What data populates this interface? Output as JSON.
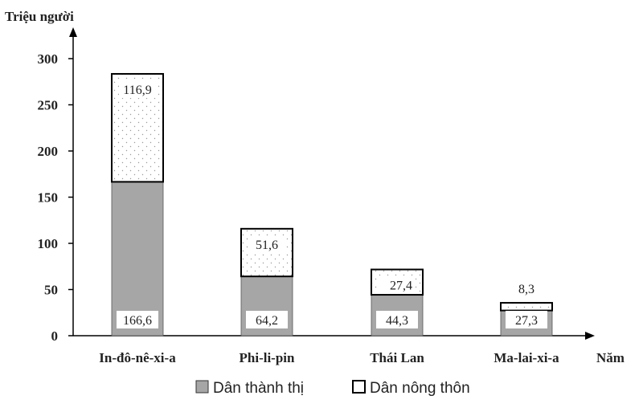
{
  "chart_data": {
    "type": "bar",
    "stacked": true,
    "ylabel": "Triệu người",
    "xlabel": "Năm",
    "ylim": [
      0,
      300
    ],
    "yticks": [
      0,
      50,
      100,
      150,
      200,
      250,
      300
    ],
    "categories": [
      "In-đô-nê-xi-a",
      "Phi-li-pin",
      "Thái Lan",
      "Ma-lai-xi-a"
    ],
    "series": [
      {
        "name": "Dân thành thị",
        "values": [
          166.6,
          64.2,
          44.3,
          27.3
        ],
        "labels": [
          "166,6",
          "64,2",
          "44,3",
          "27,3"
        ],
        "color": "#a6a6a6"
      },
      {
        "name": "Dân nông thôn",
        "values": [
          116.9,
          51.6,
          27.4,
          8.3
        ],
        "labels": [
          "116,9",
          "51,6",
          "27,4",
          "8,3"
        ],
        "color": "#ffffff"
      }
    ],
    "legend_position": "bottom",
    "grid": false
  }
}
